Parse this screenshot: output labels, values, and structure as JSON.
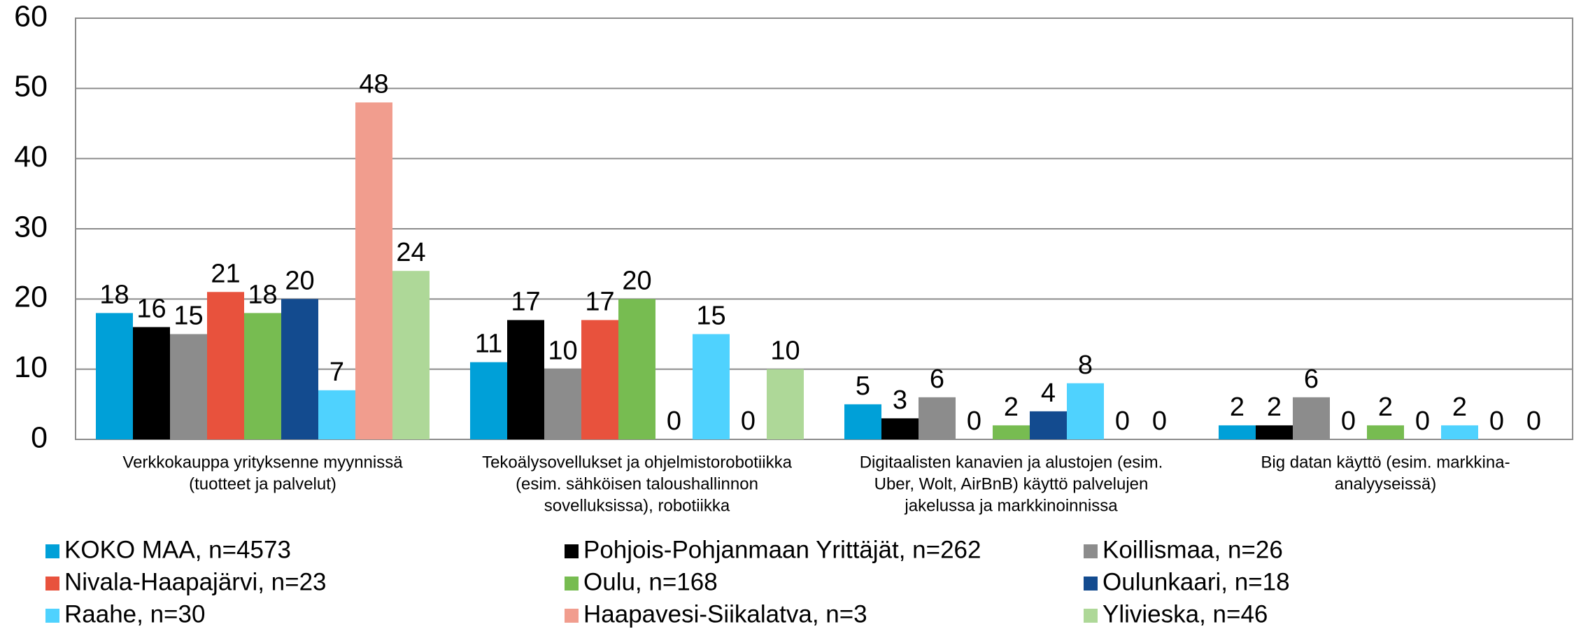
{
  "chart_data": {
    "type": "bar",
    "categories": [
      [
        "Verkkokauppa yrityksenne myynnissä",
        "(tuotteet ja palvelut)"
      ],
      [
        "Tekoälysovellukset ja ohjelmistorobotiikka",
        "(esim. sähköisen taloushallinnon",
        "sovelluksissa), robotiikka"
      ],
      [
        "Digitaalisten kanavien ja alustojen (esim.",
        "Uber, Wolt, AirBnB) käyttö palvelujen",
        "jakelussa ja markkinoinnissa"
      ],
      [
        "Big datan käyttö (esim. markkina-",
        "analyyseissä)"
      ]
    ],
    "series": [
      {
        "name": "KOKO MAA, n=4573",
        "color": "#00a0d8",
        "values": [
          18,
          11,
          5,
          2
        ]
      },
      {
        "name": "Pohjois-Pohjanmaan Yrittäjät, n=262",
        "color": "#000000",
        "values": [
          16,
          17,
          3,
          2
        ]
      },
      {
        "name": "Koillismaa, n=26",
        "color": "#8c8c8c",
        "values": [
          15,
          10,
          6,
          6
        ]
      },
      {
        "name": "Nivala-Haapajärvi, n=23",
        "color": "#e8523d",
        "values": [
          21,
          17,
          0,
          0
        ]
      },
      {
        "name": "Oulu, n=168",
        "color": "#77bc51",
        "values": [
          18,
          20,
          2,
          2
        ]
      },
      {
        "name": "Oulunkaari, n=18",
        "color": "#134b8f",
        "values": [
          20,
          0,
          4,
          0
        ]
      },
      {
        "name": "Raahe, n=30",
        "color": "#4fd2fe",
        "values": [
          7,
          15,
          8,
          2
        ]
      },
      {
        "name": "Haapavesi-Siikalatva, n=3",
        "color": "#f19d8e",
        "values": [
          48,
          0,
          0,
          0
        ]
      },
      {
        "name": "Ylivieska, n=46",
        "color": "#aed898",
        "values": [
          24,
          10,
          0,
          0
        ]
      }
    ],
    "ylim": [
      0,
      60
    ],
    "yticks": [
      0,
      10,
      20,
      30,
      40,
      50,
      60
    ],
    "grid": true,
    "legend": "bottom"
  }
}
